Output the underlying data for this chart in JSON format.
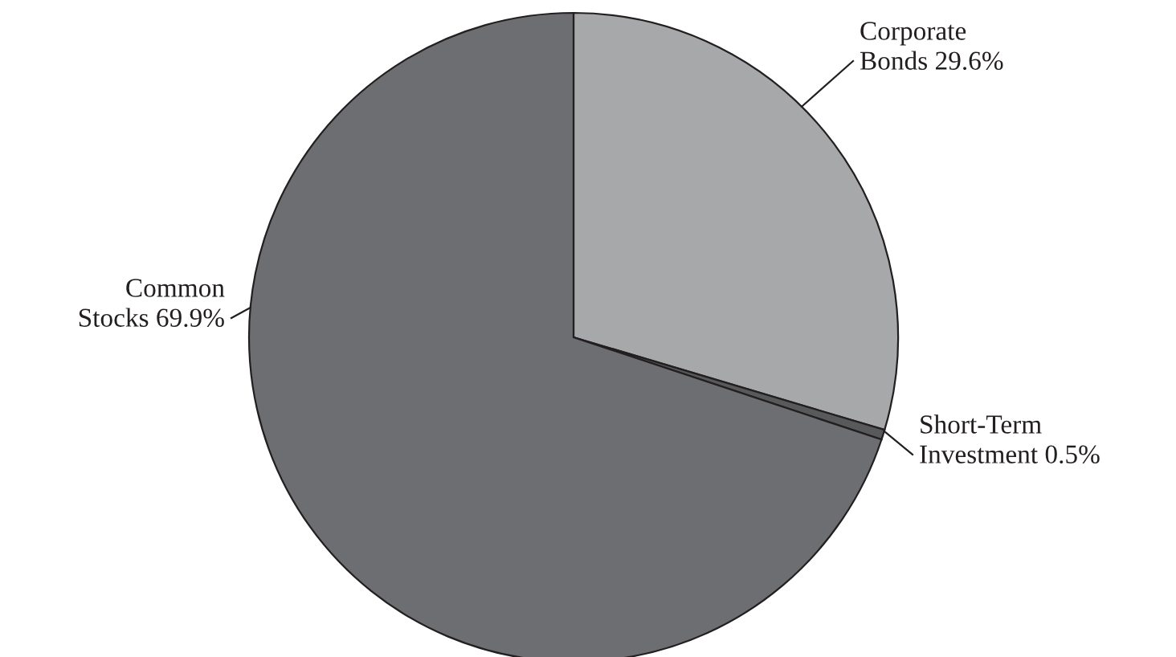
{
  "chart_data": {
    "type": "pie",
    "categories": [
      "Corporate\nBonds 29.6%",
      "Short-Term\nInvestment 0.5%",
      "Common\nStocks 69.9%"
    ],
    "values": [
      29.6,
      0.5,
      69.9
    ],
    "colors": [
      "#a7a8aa",
      "#58595b",
      "#6d6e71"
    ]
  }
}
